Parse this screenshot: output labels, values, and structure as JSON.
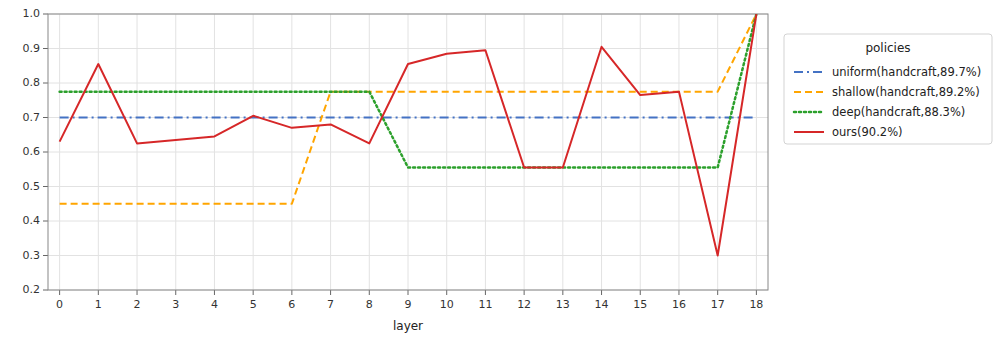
{
  "chart_data": {
    "type": "line",
    "xlabel": "layer",
    "legend_title": "policies",
    "legend": "right",
    "grid": true,
    "x": [
      0,
      1,
      2,
      3,
      4,
      5,
      6,
      7,
      8,
      9,
      10,
      11,
      12,
      13,
      14,
      15,
      16,
      17,
      18
    ],
    "xlim": [
      -0.3,
      18.3
    ],
    "xticks": [
      0,
      1,
      2,
      3,
      4,
      5,
      6,
      7,
      8,
      9,
      10,
      11,
      12,
      13,
      14,
      15,
      16,
      17,
      18
    ],
    "ylim": [
      0.2,
      1.0
    ],
    "yticks": [
      0.2,
      0.3,
      0.4,
      0.5,
      0.6,
      0.7,
      0.8,
      0.9,
      {
        "value": 1.0,
        "label": "1.0"
      }
    ],
    "series": [
      {
        "name": "uniform(handcraft,89.7%)",
        "color": "#4472C4",
        "line_style": "dashdot",
        "values": [
          0.7,
          0.7,
          0.7,
          0.7,
          0.7,
          0.7,
          0.7,
          0.7,
          0.7,
          0.7,
          0.7,
          0.7,
          0.7,
          0.7,
          0.7,
          0.7,
          0.7,
          0.7,
          0.7
        ]
      },
      {
        "name": "shallow(handcraft,89.2%)",
        "color": "#FFA500",
        "line_style": "dashed",
        "values": [
          0.45,
          0.45,
          0.45,
          0.45,
          0.45,
          0.45,
          0.45,
          0.775,
          0.775,
          0.775,
          0.775,
          0.775,
          0.775,
          0.775,
          0.775,
          0.775,
          0.775,
          0.775,
          1.0
        ]
      },
      {
        "name": "deep(handcraft,88.3%)",
        "color": "#2CA02C",
        "line_style": "dotted",
        "values": [
          0.775,
          0.775,
          0.775,
          0.775,
          0.775,
          0.775,
          0.775,
          0.775,
          0.775,
          0.555,
          0.555,
          0.555,
          0.555,
          0.555,
          0.555,
          0.555,
          0.555,
          0.555,
          1.0
        ]
      },
      {
        "name": "ours(90.2%)",
        "color": "#D62728",
        "line_style": "solid",
        "values": [
          0.63,
          0.855,
          0.625,
          0.635,
          0.645,
          0.705,
          0.67,
          0.68,
          0.625,
          0.855,
          0.885,
          0.895,
          0.555,
          0.555,
          0.905,
          0.765,
          0.775,
          0.3,
          1.0
        ]
      }
    ]
  }
}
